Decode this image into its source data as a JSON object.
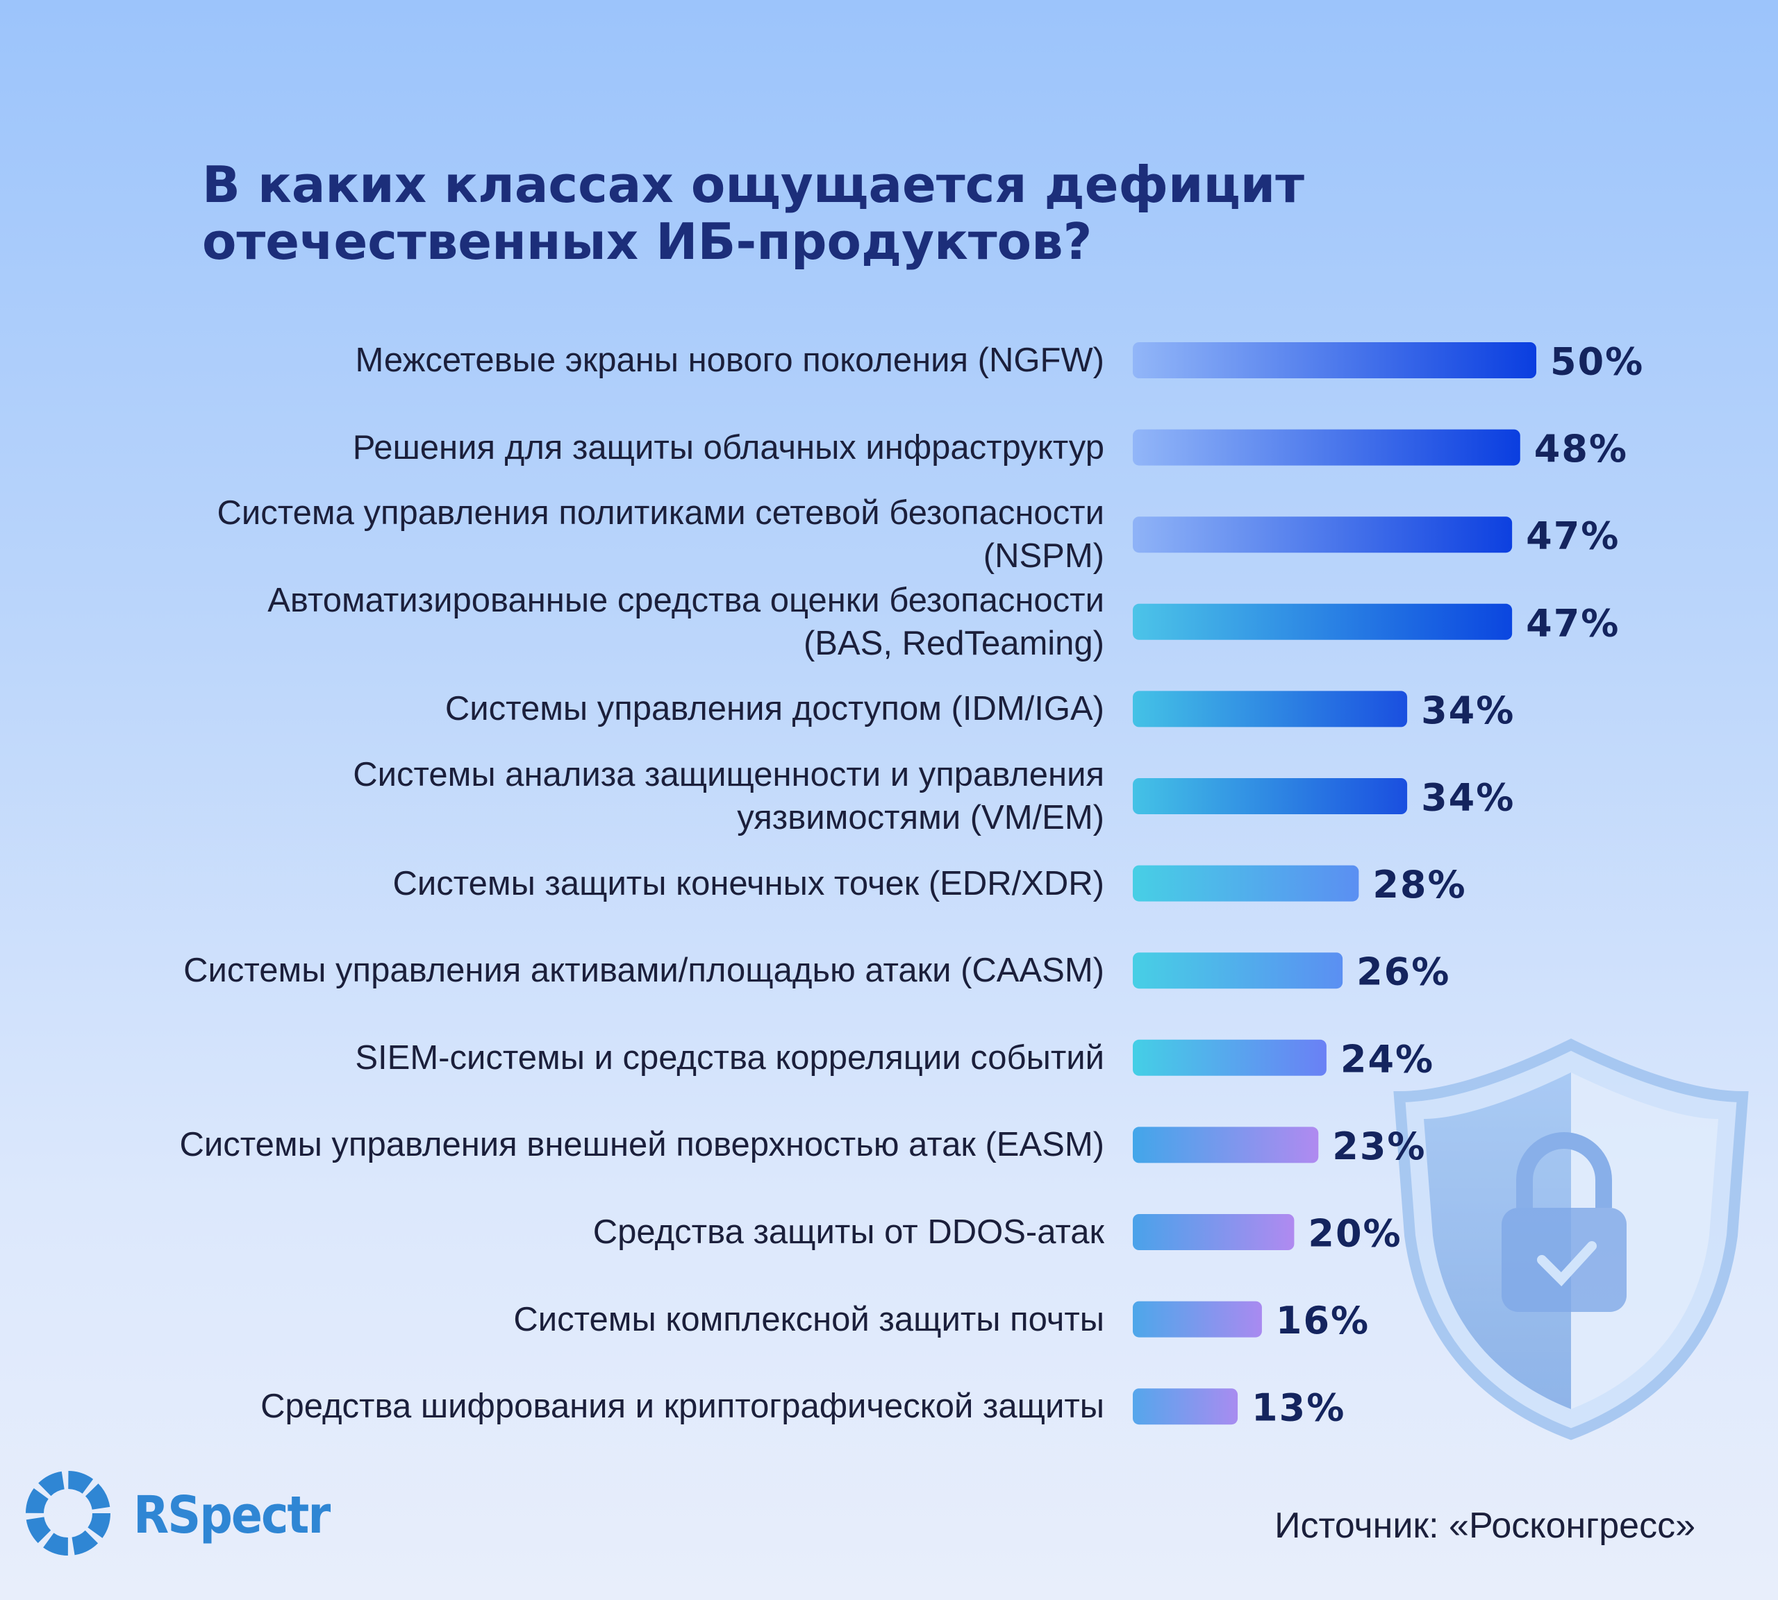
{
  "chart_data": {
    "type": "hbar",
    "title": "В каких классах ощущается дефицит отечественных ИБ-продуктов?",
    "categories": [
      "Межсетевые экраны нового поколения (NGFW)",
      "Решения для защиты облачных инфраструктур",
      "Система управления политиками сетевой безопасности\n(NSPM)",
      "Автоматизированные средства оценки безопасности\n(BAS, RedTeaming)",
      "Системы управления доступом (IDM/IGA)",
      "Системы анализа защищенности и управления\nуязвимостями (VM/EM)",
      "Системы защиты конечных точек (EDR/XDR)",
      "Системы управления активами/площадью атаки (CAASM)",
      "SIEM-системы и средства корреляции событий",
      "Системы управления внешней поверхностью атак (EASM)",
      "Средства защиты от DDOS-атак",
      "Системы комплексной защиты почты",
      "Средства шифрования и криптографической защиты"
    ],
    "values": [
      50,
      48,
      47,
      47,
      34,
      34,
      28,
      26,
      24,
      23,
      20,
      16,
      13
    ],
    "value_labels": [
      "50%",
      "48%",
      "47%",
      "47%",
      "34%",
      "34%",
      "28%",
      "26%",
      "24%",
      "23%",
      "20%",
      "16%",
      "13%"
    ],
    "bar_gradients": [
      [
        "#92b6f8",
        "#0a3ee0"
      ],
      [
        "#92b6f8",
        "#0a3ee0"
      ],
      [
        "#8fb3f7",
        "#0d40e0"
      ],
      [
        "#4cc4e8",
        "#0b46e0"
      ],
      [
        "#44c2e6",
        "#1a4fe0"
      ],
      [
        "#44c2e6",
        "#1a4fe0"
      ],
      [
        "#47cfe5",
        "#5b8ff2"
      ],
      [
        "#47cfe5",
        "#5b8ff2"
      ],
      [
        "#44cfe6",
        "#6a80f5"
      ],
      [
        "#42a6ea",
        "#b08af0"
      ],
      [
        "#4aa2ea",
        "#b08af0"
      ],
      [
        "#4da7ea",
        "#a98af0"
      ],
      [
        "#55a6ec",
        "#a88cf0"
      ]
    ],
    "source": "Источник: «Росконгресс»",
    "brand": "RSpectr"
  }
}
